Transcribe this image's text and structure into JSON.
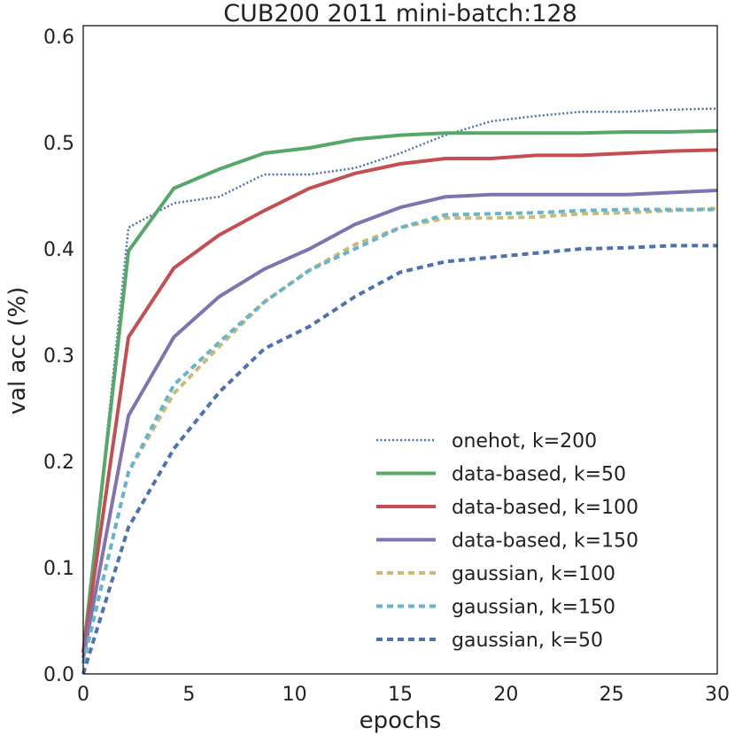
{
  "chart_data": {
    "type": "line",
    "title": "CUB200 2011 mini-batch:128",
    "xlabel": "epochs",
    "ylabel": "val acc (%)",
    "xlim": [
      0,
      30
    ],
    "ylim": [
      0,
      0.61
    ],
    "xticks": [
      0,
      5,
      10,
      15,
      20,
      25,
      30
    ],
    "yticks": [
      0.0,
      0.1,
      0.2,
      0.3,
      0.4,
      0.5,
      0.6
    ],
    "xtick_labels": [
      "0",
      "5",
      "10",
      "15",
      "20",
      "25",
      "30"
    ],
    "ytick_labels": [
      "0.0",
      "0.1",
      "0.2",
      "0.3",
      "0.4",
      "0.5",
      "0.6"
    ],
    "grid": false,
    "legend_position": "lower-right",
    "x": [
      0,
      2.14,
      4.29,
      6.43,
      8.57,
      10.71,
      12.86,
      15.0,
      17.14,
      19.29,
      21.43,
      23.57,
      25.71,
      27.86,
      30.0
    ],
    "series": [
      {
        "name": "onehot, k=200",
        "color": "#4c72b0",
        "style": "dotted",
        "values": [
          0.01,
          0.42,
          0.443,
          0.449,
          0.47,
          0.47,
          0.476,
          0.49,
          0.507,
          0.52,
          0.525,
          0.529,
          0.529,
          0.531,
          0.532
        ]
      },
      {
        "name": "data-based, k=50",
        "color": "#55a868",
        "style": "solid",
        "values": [
          0.02,
          0.398,
          0.457,
          0.475,
          0.49,
          0.495,
          0.503,
          0.507,
          0.509,
          0.509,
          0.509,
          0.509,
          0.51,
          0.51,
          0.511
        ]
      },
      {
        "name": "data-based, k=100",
        "color": "#c44e52",
        "style": "solid",
        "values": [
          0.02,
          0.317,
          0.382,
          0.413,
          0.436,
          0.457,
          0.471,
          0.48,
          0.485,
          0.485,
          0.488,
          0.488,
          0.49,
          0.492,
          0.493
        ]
      },
      {
        "name": "data-based, k=150",
        "color": "#8172b2",
        "style": "solid",
        "values": [
          0.015,
          0.243,
          0.317,
          0.355,
          0.381,
          0.4,
          0.423,
          0.439,
          0.449,
          0.451,
          0.451,
          0.451,
          0.451,
          0.453,
          0.455
        ]
      },
      {
        "name": "gaussian, k=100",
        "color": "#ccb974",
        "style": "dashed",
        "values": [
          0.01,
          0.19,
          0.264,
          0.308,
          0.35,
          0.38,
          0.404,
          0.42,
          0.429,
          0.429,
          0.43,
          0.433,
          0.434,
          0.436,
          0.438
        ]
      },
      {
        "name": "gaussian, k=150",
        "color": "#64b5cd",
        "style": "dashed",
        "values": [
          0.01,
          0.19,
          0.272,
          0.312,
          0.35,
          0.38,
          0.4,
          0.42,
          0.432,
          0.433,
          0.434,
          0.436,
          0.437,
          0.437,
          0.437
        ]
      },
      {
        "name": "gaussian, k=50",
        "color": "#4c72b0",
        "style": "dashed",
        "values": [
          0.0,
          0.138,
          0.212,
          0.265,
          0.306,
          0.327,
          0.355,
          0.378,
          0.388,
          0.392,
          0.396,
          0.4,
          0.401,
          0.403,
          0.403
        ]
      }
    ]
  }
}
